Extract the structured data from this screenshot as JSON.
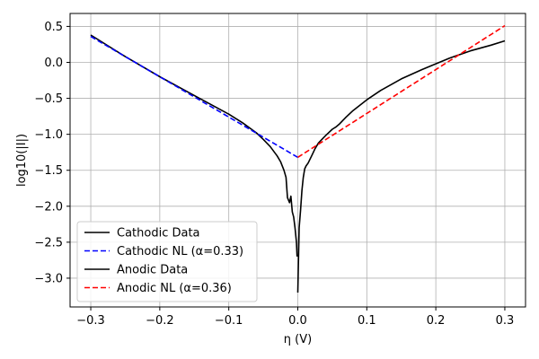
{
  "chart_data": {
    "type": "line",
    "title": "",
    "xlabel": "η (V)",
    "ylabel": "log10(|I|)",
    "xlim": [
      -0.33,
      0.33
    ],
    "ylim": [
      -3.4,
      0.68
    ],
    "xticks": [
      -0.3,
      -0.2,
      -0.1,
      0.0,
      0.1,
      0.2,
      0.3
    ],
    "xtick_labels": [
      "−0.3",
      "−0.2",
      "−0.1",
      "0.0",
      "0.1",
      "0.2",
      "0.3"
    ],
    "yticks": [
      0.5,
      0.0,
      -0.5,
      -1.0,
      -1.5,
      -2.0,
      -2.5,
      -3.0
    ],
    "ytick_labels": [
      "0.5",
      "0.0",
      "−0.5",
      "−1.0",
      "−1.5",
      "−2.0",
      "−2.5",
      "−3.0"
    ],
    "grid": true,
    "legend_position": "lower-left",
    "series": [
      {
        "name": "Cathodic Data",
        "color": "#000000",
        "style": "solid",
        "x": [
          -0.3,
          -0.25,
          -0.2,
          -0.15,
          -0.1,
          -0.08,
          -0.06,
          -0.05,
          -0.04,
          -0.03,
          -0.025,
          -0.02,
          -0.017,
          -0.015,
          -0.012,
          -0.01,
          -0.008,
          -0.006,
          -0.004,
          -0.002,
          -0.001
        ],
        "y": [
          0.38,
          0.08,
          -0.2,
          -0.46,
          -0.72,
          -0.84,
          -0.98,
          -1.07,
          -1.17,
          -1.3,
          -1.38,
          -1.5,
          -1.6,
          -1.88,
          -1.95,
          -1.86,
          -2.08,
          -2.15,
          -2.3,
          -2.5,
          -2.7
        ]
      },
      {
        "name": "Cathodic NL (α=0.33)",
        "color": "#0000ff",
        "style": "dashed",
        "x": [
          -0.3,
          0.0
        ],
        "y": [
          0.36,
          -1.32
        ]
      },
      {
        "name": "Anodic Data",
        "color": "#000000",
        "style": "solid",
        "x": [
          0.0,
          0.002,
          0.004,
          0.006,
          0.008,
          0.01,
          0.012,
          0.015,
          0.02,
          0.025,
          0.03,
          0.04,
          0.05,
          0.055,
          0.06,
          0.07,
          0.08,
          0.1,
          0.12,
          0.15,
          0.18,
          0.2,
          0.22,
          0.25,
          0.28,
          0.3
        ],
        "y": [
          -3.2,
          -2.3,
          -2.05,
          -1.78,
          -1.6,
          -1.48,
          -1.44,
          -1.4,
          -1.3,
          -1.2,
          -1.12,
          -1.02,
          -0.93,
          -0.9,
          -0.86,
          -0.76,
          -0.67,
          -0.52,
          -0.39,
          -0.23,
          -0.1,
          -0.02,
          0.06,
          0.16,
          0.24,
          0.3
        ]
      },
      {
        "name": "Anodic NL (α=0.36)",
        "color": "#ff0000",
        "style": "dashed",
        "x": [
          0.0,
          0.3
        ],
        "y": [
          -1.32,
          0.51
        ]
      }
    ]
  }
}
